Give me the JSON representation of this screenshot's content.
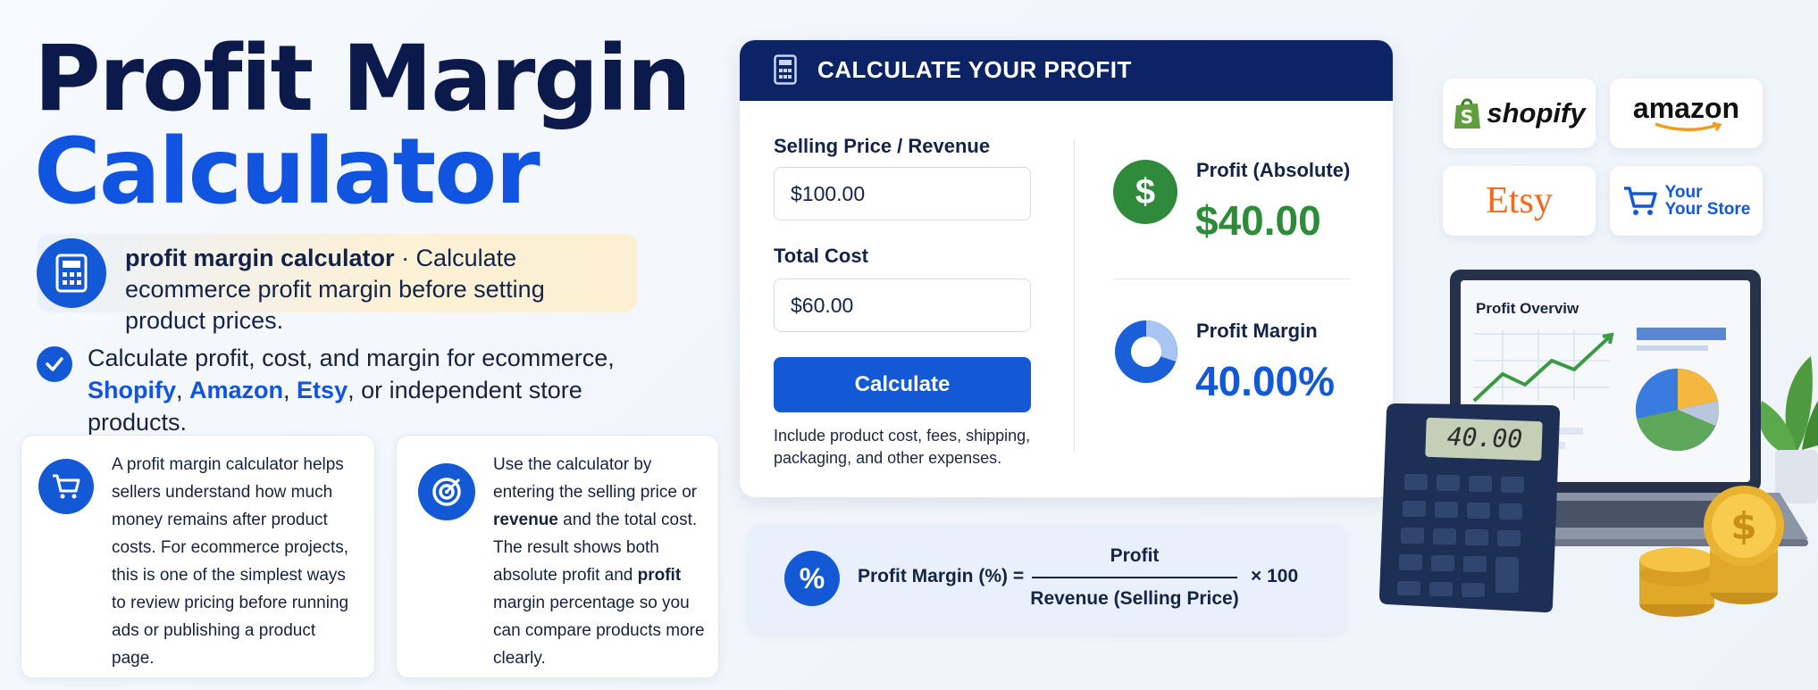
{
  "title": {
    "line1": "Profit Margin",
    "line2": "Calculator"
  },
  "highlight": {
    "bold": "profit margin calculator",
    "text": " · Calculate ecommerce profit margin before setting product prices."
  },
  "feature": {
    "parts": [
      "Calculate profit, cost, and margin for ecommerce, ",
      "Shopify",
      ", ",
      "Amazon",
      ", ",
      "Etsy",
      ", or independent store products."
    ]
  },
  "cards": [
    {
      "parts": [
        "A profit margin calculator helps sellers understand how much money remains after product costs. For ecommerce projects, this is one of the simplest ways to review pricing before running ads or publishing a product page."
      ]
    },
    {
      "parts": [
        "Use the calculator by entering the selling price or ",
        "revenue",
        " and the total cost. The result shows both absolute profit and ",
        "profit",
        " margin percentage so you can compare products more clearly."
      ]
    }
  ],
  "calculator": {
    "header": "CALCULATE YOUR PROFIT",
    "fields": [
      {
        "label": "Selling Price / Revenue",
        "value": "$100.00"
      },
      {
        "label": "Total Cost",
        "value": "$60.00"
      }
    ],
    "button": "Calculate",
    "note": "Include product cost, fees, shipping, packaging, and other expenses.",
    "results": [
      {
        "label": "Profit (Absolute)",
        "value": "$40.00"
      },
      {
        "label": "Profit Margin",
        "value": "40.00%"
      }
    ]
  },
  "formula": {
    "left": "Profit Margin (%) =",
    "numerator": "Profit",
    "denominator": "Revenue (Selling Price)",
    "multiplier": "× 100"
  },
  "logos": {
    "shopify": "shopify",
    "amazon": "amazon",
    "etsy": "Etsy",
    "store_line1": "Your",
    "store_line2": "Your Store"
  },
  "illustration": {
    "screen_title": "Profit Overviw",
    "calculator_display": "40.00"
  }
}
